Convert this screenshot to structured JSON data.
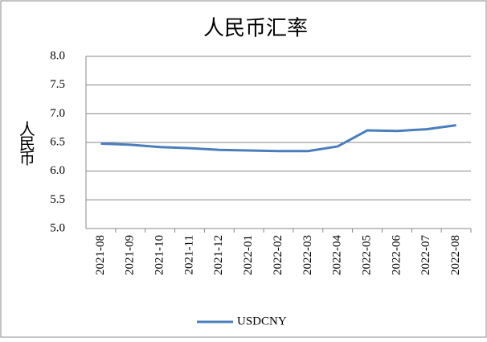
{
  "chart_data": {
    "type": "line",
    "title": "人民币汇率",
    "y_label": "人民币",
    "categories": [
      "2021-08",
      "2021-09",
      "2021-10",
      "2021-11",
      "2021-12",
      "2022-01",
      "2022-02",
      "2022-03",
      "2022-04",
      "2022-05",
      "2022-06",
      "2022-07",
      "2022-08"
    ],
    "series": [
      {
        "name": "USDCNY",
        "color": "#4a7ebb",
        "values": [
          6.48,
          6.46,
          6.42,
          6.4,
          6.37,
          6.36,
          6.35,
          6.35,
          6.43,
          6.71,
          6.7,
          6.73,
          6.8
        ]
      }
    ],
    "ylim": [
      5.0,
      8.0
    ],
    "yticks": [
      {
        "value": 5.0,
        "label": "5.0"
      },
      {
        "value": 5.5,
        "label": "5.5"
      },
      {
        "value": 6.0,
        "label": "6.0"
      },
      {
        "value": 6.5,
        "label": "6.5"
      },
      {
        "value": 7.0,
        "label": "7.0"
      },
      {
        "value": 7.5,
        "label": "7.5"
      },
      {
        "value": 8.0,
        "label": "8.0"
      }
    ],
    "grid": true,
    "legend": "bottom"
  }
}
